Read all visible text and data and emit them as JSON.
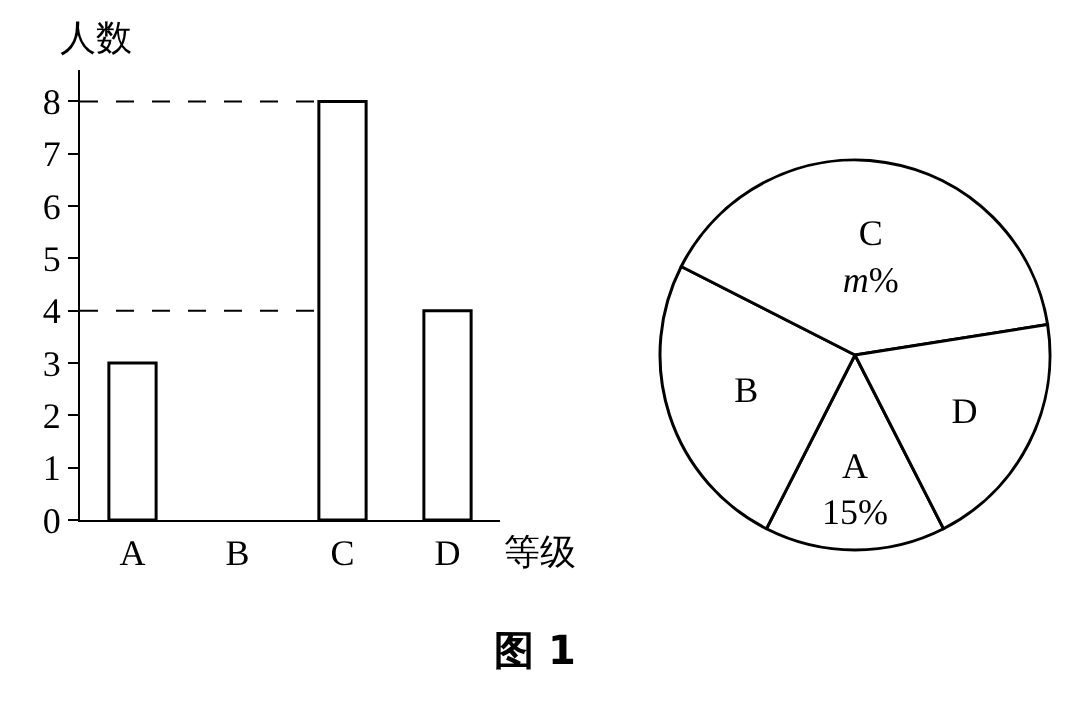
{
  "chart_data": [
    {
      "type": "bar",
      "xlabel": "等级",
      "ylabel": "人数",
      "categories": [
        "A",
        "B",
        "C",
        "D"
      ],
      "values": [
        3,
        null,
        8,
        4
      ],
      "color": "#ffffff",
      "ylim": [
        0,
        8.6
      ],
      "yticks": [
        0,
        1,
        2,
        3,
        4,
        5,
        6,
        7,
        8
      ],
      "grid": false,
      "ref_lines": [
        {
          "axis": "y",
          "value": 8,
          "line_style": "dashed"
        },
        {
          "axis": "y",
          "value": 4,
          "line_style": "dashed"
        }
      ],
      "annotations": [
        "图 1"
      ]
    },
    {
      "type": "pie",
      "categories": [
        "A",
        "B",
        "C",
        "D"
      ],
      "values": [
        15,
        25,
        40,
        20
      ],
      "colors": [
        "#ffffff",
        "#ffffff",
        "#ffffff",
        "#ffffff"
      ],
      "value_labels": [
        "15%",
        null,
        "m%",
        null
      ]
    }
  ]
}
